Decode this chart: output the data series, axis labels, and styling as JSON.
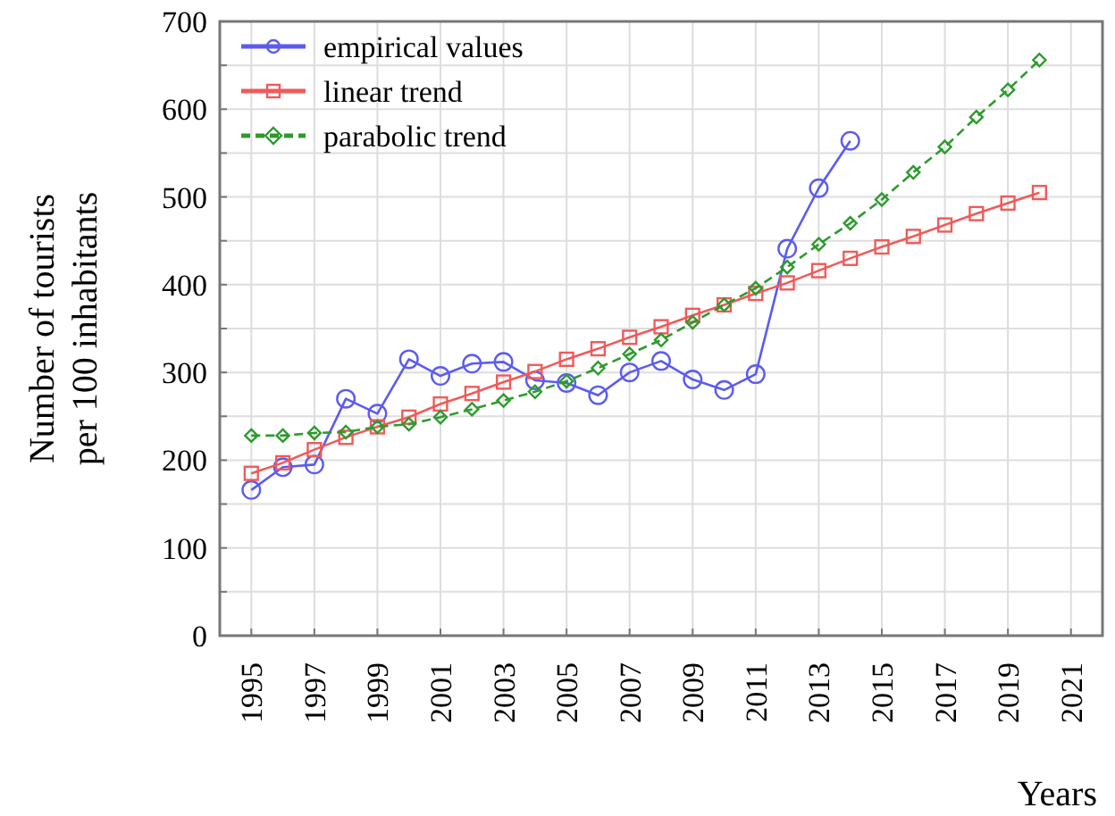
{
  "chart_data": {
    "type": "line",
    "xlabel": "Years",
    "ylabel": "Number of tourists\nper 100 inhabitants",
    "xlim": [
      1994,
      2022
    ],
    "xticks": [
      1995,
      1997,
      1999,
      2001,
      2003,
      2005,
      2007,
      2009,
      2011,
      2013,
      2015,
      2017,
      2019,
      2021
    ],
    "ylim": [
      0,
      700
    ],
    "yticks": [
      0,
      {
        "value": 50,
        "label": null
      },
      100,
      {
        "value": 150,
        "label": null
      },
      200,
      {
        "value": 250,
        "label": null
      },
      300,
      {
        "value": 350,
        "label": null
      },
      400,
      {
        "value": 450,
        "label": null
      },
      500,
      {
        "value": 550,
        "label": null
      },
      600,
      {
        "value": 650,
        "label": null
      },
      700
    ],
    "grid": true,
    "legend": "top left",
    "series": [
      {
        "name": "empirical values",
        "color": "#5b5bf0",
        "marker": "circle",
        "line_style": "solid",
        "x": [
          1995,
          1996,
          1997,
          1998,
          1999,
          2000,
          2001,
          2002,
          2003,
          2004,
          2005,
          2006,
          2007,
          2008,
          2009,
          2010,
          2011,
          2012,
          2013,
          2014
        ],
        "values": [
          166,
          192,
          195,
          270,
          253,
          315,
          296,
          310,
          312,
          291,
          288,
          274,
          300,
          313,
          292,
          280,
          298,
          441,
          510,
          564
        ]
      },
      {
        "name": "linear trend",
        "color": "#f05a5a",
        "marker": "square",
        "line_style": "solid",
        "x": [
          1995,
          1996,
          1997,
          1998,
          1999,
          2000,
          2001,
          2002,
          2003,
          2004,
          2005,
          2006,
          2007,
          2008,
          2009,
          2010,
          2011,
          2012,
          2013,
          2014,
          2015,
          2016,
          2017,
          2018,
          2019,
          2020
        ],
        "values": [
          185,
          197,
          212,
          226,
          238,
          249,
          264,
          276,
          289,
          301,
          315,
          327,
          340,
          352,
          365,
          377,
          390,
          402,
          416,
          430,
          443,
          455,
          468,
          481,
          493,
          505
        ]
      },
      {
        "name": "parabolic trend",
        "color": "#2e9a2e",
        "marker": "diamond",
        "line_style": "dashed",
        "x": [
          1995,
          1996,
          1997,
          1998,
          1999,
          2000,
          2001,
          2002,
          2003,
          2004,
          2005,
          2006,
          2007,
          2008,
          2009,
          2010,
          2011,
          2012,
          2013,
          2014,
          2015,
          2016,
          2017,
          2018,
          2019,
          2020
        ],
        "values": [
          228,
          228,
          231,
          232,
          238,
          241,
          249,
          258,
          268,
          278,
          290,
          305,
          321,
          337,
          357,
          377,
          396,
          420,
          446,
          470,
          497,
          528,
          557,
          591,
          622,
          656
        ]
      }
    ]
  }
}
